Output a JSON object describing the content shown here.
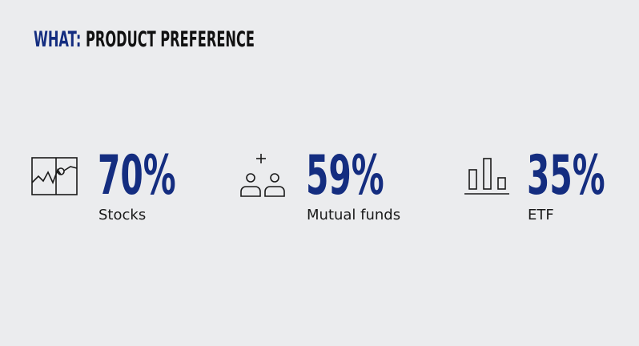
{
  "header": {
    "title_prefix": "WHAT:",
    "title": "PRODUCT PREFERENCE"
  },
  "stats": [
    {
      "value": "70%",
      "label": "Stocks"
    },
    {
      "value": "59%",
      "label": "Mutual funds"
    },
    {
      "value": "35%",
      "label": "ETF"
    }
  ]
}
